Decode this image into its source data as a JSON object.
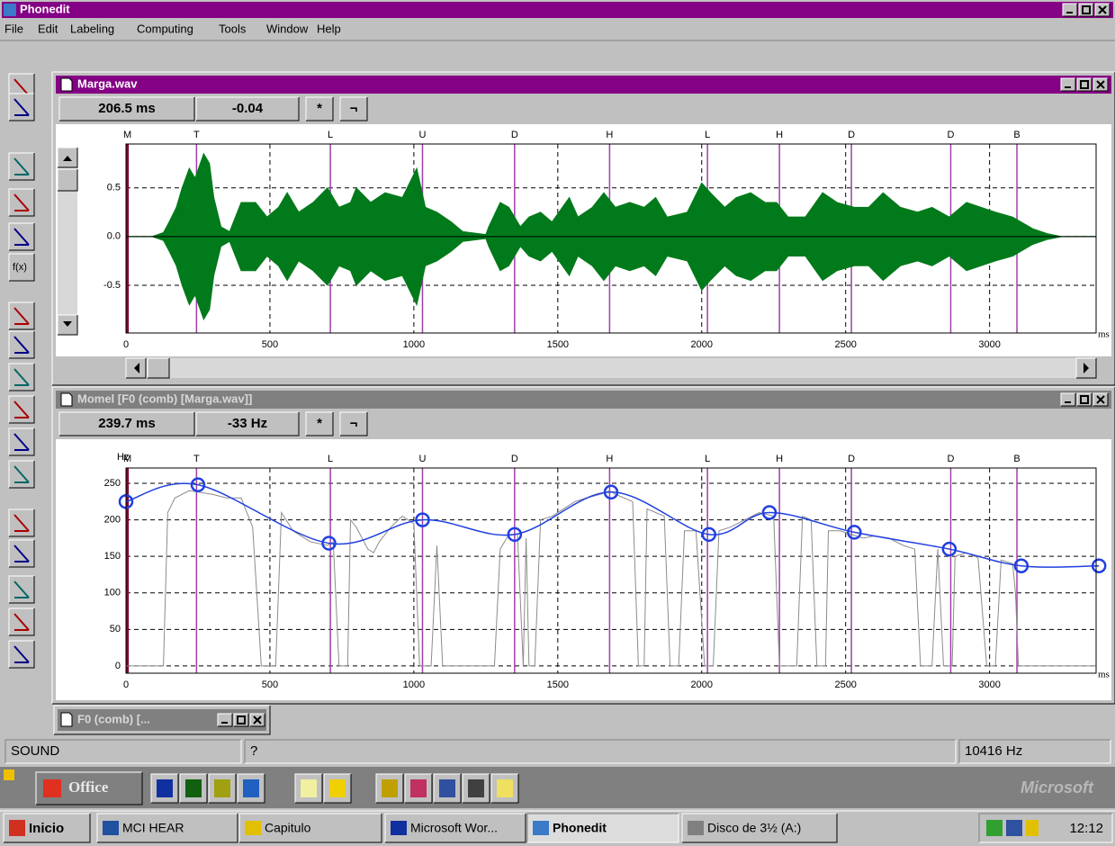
{
  "app": {
    "title": "Phonedit",
    "menu": [
      "File",
      "Edit",
      "Labeling",
      "Computing",
      "Tools",
      "Window",
      "Help"
    ],
    "toolbar_fx": "f(x)"
  },
  "windows": [
    {
      "title": "Marga.wav",
      "fields": [
        "206.5 ms",
        "-0.04",
        "*",
        "¬"
      ],
      "chart": {
        "type": "waveform",
        "color": "#007a1a",
        "xlim": [
          0,
          3370
        ],
        "ylim": [
          -0.99,
          0.95
        ],
        "xticks": [
          0,
          500,
          1000,
          1500,
          2000,
          2500,
          3000
        ],
        "xunit": "ms",
        "yticks": [
          0.5,
          {
            "value": 0,
            "label": "0.0"
          },
          -0.5
        ],
        "labels": {
          "names": [
            "M",
            "T",
            "L",
            "U",
            "D",
            "H",
            "L",
            "H",
            "D",
            "D",
            "B"
          ],
          "x": [
            5,
            245,
            710,
            1030,
            1350,
            1680,
            2020,
            2270,
            2520,
            2865,
            3095
          ]
        },
        "envelope": {
          "x": [
            0,
            90,
            130,
            150,
            175,
            195,
            220,
            240,
            270,
            290,
            305,
            330,
            360,
            400,
            450,
            490,
            530,
            560,
            600,
            650,
            700,
            740,
            780,
            800,
            850,
            900,
            960,
            1010,
            1040,
            1080,
            1130,
            1170,
            1250,
            1260,
            1300,
            1330,
            1370,
            1400,
            1440,
            1480,
            1540,
            1570,
            1620,
            1660,
            1700,
            1750,
            1800,
            1840,
            1880,
            1950,
            2000,
            2030,
            2080,
            2120,
            2170,
            2220,
            2260,
            2300,
            2360,
            2420,
            2470,
            2530,
            2580,
            2630,
            2690,
            2750,
            2800,
            2860,
            2920,
            2970,
            3020,
            3080,
            3150,
            3200,
            3250,
            3370
          ],
          "amplitude": [
            0,
            0,
            0.04,
            0.15,
            0.3,
            0.5,
            0.7,
            0.6,
            0.85,
            0.75,
            0.4,
            0.1,
            0.05,
            0.35,
            0.35,
            0.2,
            0.3,
            0.45,
            0.25,
            0.35,
            0.5,
            0.3,
            0.35,
            0.5,
            0.35,
            0.45,
            0.4,
            0.7,
            0.3,
            0.25,
            0.15,
            0.05,
            0.02,
            0.1,
            0.35,
            0.3,
            0.1,
            0.2,
            0.25,
            0.15,
            0.4,
            0.2,
            0.3,
            0.45,
            0.3,
            0.35,
            0.3,
            0.4,
            0.2,
            0.25,
            0.55,
            0.45,
            0.3,
            0.4,
            0.45,
            0.35,
            0.35,
            0.2,
            0.2,
            0.45,
            0.35,
            0.3,
            0.3,
            0.45,
            0.3,
            0.25,
            0.3,
            0.2,
            0.35,
            0.3,
            0.25,
            0.2,
            0.08,
            0.03,
            0,
            0
          ]
        }
      }
    },
    {
      "title": "Momel [F0 (comb) [Marga.wav]]",
      "fields": [
        "239.7 ms",
        "-33 Hz",
        "*",
        "¬"
      ],
      "chart": {
        "type": "line",
        "ylabel": "Hz",
        "xlim": [
          0,
          3370
        ],
        "ylim": [
          -10,
          271
        ],
        "xticks": [
          0,
          500,
          1000,
          1500,
          2000,
          2500,
          3000
        ],
        "xunit": "ms",
        "yticks": [
          0,
          50,
          100,
          150,
          200,
          250
        ],
        "labels": {
          "names": [
            "M",
            "T",
            "L",
            "U",
            "D",
            "H",
            "L",
            "H",
            "D",
            "D",
            "B"
          ],
          "x": [
            5,
            245,
            710,
            1030,
            1350,
            1680,
            2020,
            2270,
            2520,
            2865,
            3095
          ]
        },
        "raw": {
          "color": "#8c8c8c",
          "x": [
            0,
            130,
            145,
            170,
            220,
            300,
            350,
            400,
            440,
            470,
            520,
            540,
            580,
            640,
            700,
            720,
            740,
            770,
            780,
            800,
            840,
            860,
            880,
            920,
            960,
            1000,
            1020,
            1060,
            1080,
            1100,
            1280,
            1300,
            1330,
            1360,
            1380,
            1390,
            1400,
            1420,
            1440,
            1480,
            1520,
            1560,
            1600,
            1650,
            1680,
            1700,
            1730,
            1760,
            1780,
            1800,
            1810,
            1840,
            1870,
            1890,
            1920,
            1940,
            1980,
            2010,
            2040,
            2060,
            2100,
            2150,
            2200,
            2250,
            2270,
            2330,
            2350,
            2380,
            2400,
            2430,
            2440,
            2480,
            2520,
            2560,
            2600,
            2650,
            2700,
            2740,
            2760,
            2800,
            2820,
            2840,
            2870,
            2880,
            2920,
            2960,
            2990,
            3020,
            3040,
            3080,
            3090,
            3100,
            3370
          ],
          "values": [
            0,
            0,
            210,
            230,
            240,
            235,
            230,
            230,
            190,
            0,
            0,
            210,
            185,
            170,
            165,
            170,
            0,
            0,
            200,
            190,
            160,
            155,
            170,
            190,
            205,
            195,
            0,
            0,
            165,
            0,
            0,
            160,
            180,
            180,
            0,
            175,
            0,
            0,
            200,
            205,
            215,
            225,
            230,
            235,
            240,
            235,
            230,
            225,
            0,
            0,
            215,
            210,
            205,
            0,
            0,
            185,
            185,
            0,
            0,
            185,
            190,
            200,
            210,
            205,
            0,
            0,
            205,
            200,
            0,
            0,
            185,
            185,
            180,
            175,
            178,
            175,
            165,
            160,
            0,
            0,
            160,
            0,
            0,
            150,
            155,
            148,
            0,
            0,
            145,
            140,
            100,
            0,
            0
          ]
        },
        "targets": {
          "color": "#1f3fe0",
          "x": [
            0,
            250,
            705,
            1030,
            1350,
            1685,
            2025,
            2235,
            2530,
            2860,
            3110,
            3380
          ],
          "values": [
            225,
            248,
            168,
            200,
            180,
            238,
            180,
            210,
            183,
            160,
            137,
            137
          ]
        }
      }
    }
  ],
  "minimized": {
    "title": "F0 (comb) [..."
  },
  "status": [
    "SOUND",
    "?",
    "10416 Hz"
  ],
  "office": {
    "label": "Office",
    "brand": "Microsoft"
  },
  "taskbar": {
    "start": "Inicio",
    "tasks": [
      "MCI HEAR",
      "Capitulo",
      "Microsoft Wor...",
      "Phonedit",
      "Disco de 3½ (A:)"
    ],
    "clock": "12:12"
  }
}
